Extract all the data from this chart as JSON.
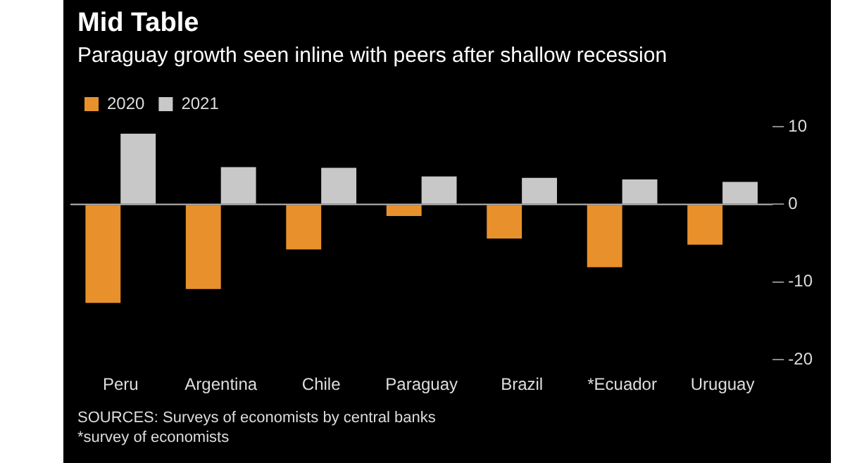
{
  "chart_data": {
    "type": "bar",
    "title": "Mid Table",
    "subtitle": "Paraguay growth seen inline with peers after shallow recession",
    "categories": [
      "Peru",
      "Argentina",
      "Chile",
      "Paraguay",
      "Brazil",
      "*Ecuador",
      "Uruguay"
    ],
    "series": [
      {
        "name": "2020",
        "color": "#e8912c",
        "values": [
          -12.7,
          -10.9,
          -5.8,
          -1.5,
          -4.4,
          -8.1,
          -5.2
        ]
      },
      {
        "name": "2021",
        "color": "#c8c8c8",
        "values": [
          9.1,
          4.8,
          4.7,
          3.6,
          3.4,
          3.2,
          2.9
        ]
      }
    ],
    "ylim": [
      -20,
      10
    ],
    "yticks": [
      -20,
      -10,
      0,
      10
    ],
    "legend": "top left",
    "ref_lines": [
      {
        "axis": "y",
        "value": 0,
        "color": "#bbbbbb"
      }
    ],
    "annotations": [
      "SOURCES: Surveys of economists by central banks",
      "*survey of economists"
    ]
  }
}
